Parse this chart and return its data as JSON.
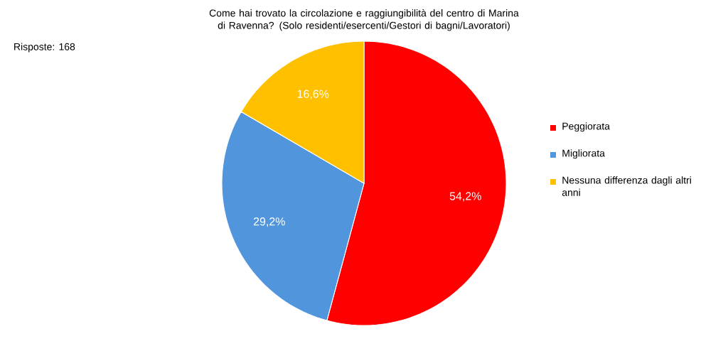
{
  "chart_data": {
    "type": "pie",
    "title": "Come hai trovato la circolazione e raggiungibilità del centro di Marina di Ravenna? (Solo residenti/esercenti/Gestori di bagni/Lavoratori)",
    "annotations": [
      "Risposte: 168"
    ],
    "categories": [
      "Peggiorata",
      "Migliorata",
      "Nessuna differenza dagli altri anni"
    ],
    "values": [
      54.2,
      29.2,
      16.6
    ],
    "colors": [
      "#ff0000",
      "#5196dc",
      "#ffc000"
    ],
    "value_labels": [
      "54,2%",
      "29,2%",
      "16,6%"
    ],
    "legend": "right"
  }
}
